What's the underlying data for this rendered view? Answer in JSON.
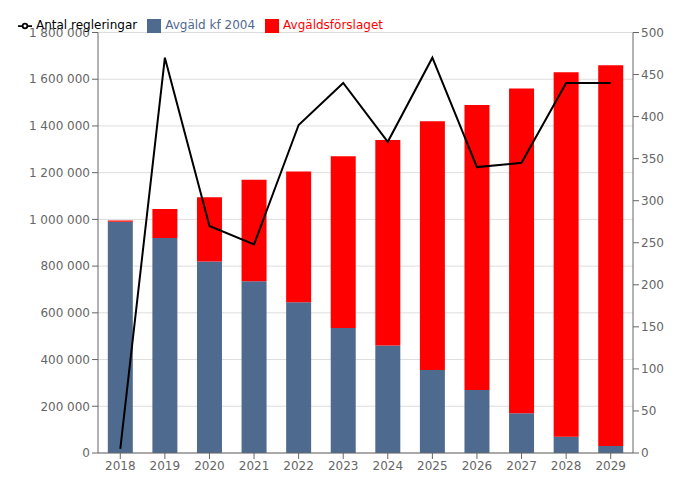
{
  "chart_data": {
    "type": "bar",
    "stacked": true,
    "grid": true,
    "legend": "upper left",
    "categories": [
      "2018",
      "2019",
      "2020",
      "2021",
      "2022",
      "2023",
      "2024",
      "2025",
      "2026",
      "2027",
      "2028",
      "2029"
    ],
    "series": [
      {
        "name": "Avgäld kf 2004",
        "type": "bar",
        "color": "#4F6A8F",
        "values": [
          990000,
          920000,
          820000,
          735000,
          645000,
          535000,
          460000,
          355000,
          270000,
          170000,
          70000,
          30000
        ]
      },
      {
        "name": "Avgäldsförslaget",
        "type": "bar",
        "color": "#FF0000",
        "values": [
          5000,
          125000,
          275000,
          435000,
          560000,
          735000,
          880000,
          1065000,
          1220000,
          1390000,
          1560000,
          1630000
        ]
      },
      {
        "name": "Antal regleringar",
        "type": "line",
        "axis": "y2",
        "color": "#000000",
        "values": [
          5,
          470,
          270,
          248,
          390,
          440,
          370,
          470,
          340,
          345,
          440,
          440
        ]
      }
    ],
    "ylim": [
      0,
      1800000
    ],
    "yticks": [
      0,
      {
        "value": 200000,
        "label": "200 000"
      },
      {
        "value": 400000,
        "label": "400 000"
      },
      {
        "value": 600000,
        "label": "600 000"
      },
      {
        "value": 800000,
        "label": "800 000"
      },
      {
        "value": 1000000,
        "label": "1 000 000"
      },
      {
        "value": 1200000,
        "label": "1 200 000"
      },
      {
        "value": 1400000,
        "label": "1 400 000"
      },
      {
        "value": 1600000,
        "label": "1 600 000"
      },
      {
        "value": 1800000,
        "label": "1 800 000"
      }
    ],
    "y2lim": [
      0,
      500
    ],
    "y2ticks": [
      0,
      50,
      100,
      150,
      200,
      250,
      300,
      350,
      400,
      450,
      500
    ]
  }
}
